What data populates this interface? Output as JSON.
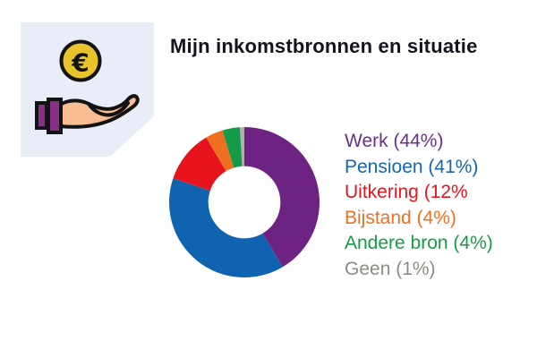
{
  "page": {
    "background": "#FFFFFF"
  },
  "header": {
    "title": "Mijn inkomstbronnen en situatie",
    "color": "#14141E"
  },
  "icon_panel": {
    "name": "hand-receiving-euro-coin",
    "background": "#E9EDF8",
    "outline_color": "#131313",
    "coin_color": "#E9C32C",
    "hand_color": "#F8BE92",
    "cuff_color": "#8B2E86",
    "euro_symbol": "€"
  },
  "chart_data": {
    "type": "pie",
    "subtype": "donut",
    "title": "Mijn inkomstbronnen en situatie",
    "start_angle_deg": 0,
    "direction": "clockwise",
    "inner_radius_ratio": 0.48,
    "legend_position": "right",
    "segments": [
      {
        "label": "Werk",
        "value": 44,
        "color": "#6E2383",
        "legend_label": "Werk (44%)",
        "legend_color": "#6E2F89"
      },
      {
        "label": "Pensioen",
        "value": 41,
        "color": "#1064AF",
        "legend_label": "Pensioen (41%)",
        "legend_color": "#1565B0"
      },
      {
        "label": "Uitkering",
        "value": 12,
        "color": "#E8141D",
        "legend_label": "Uitkering (12%",
        "legend_color": "#E8131C"
      },
      {
        "label": "Bijstand",
        "value": 4,
        "color": "#EF7021",
        "legend_label": "Bijstand (4%)",
        "legend_color": "#EF7021"
      },
      {
        "label": "Andere bron",
        "value": 4,
        "color": "#149B47",
        "legend_label": "Andere bron (4%)",
        "legend_color": "#169B47"
      },
      {
        "label": "Geen",
        "value": 1,
        "color": "#B3B0B0",
        "legend_label": "Geen (1%)",
        "legend_color": "#8C8C84"
      }
    ]
  }
}
